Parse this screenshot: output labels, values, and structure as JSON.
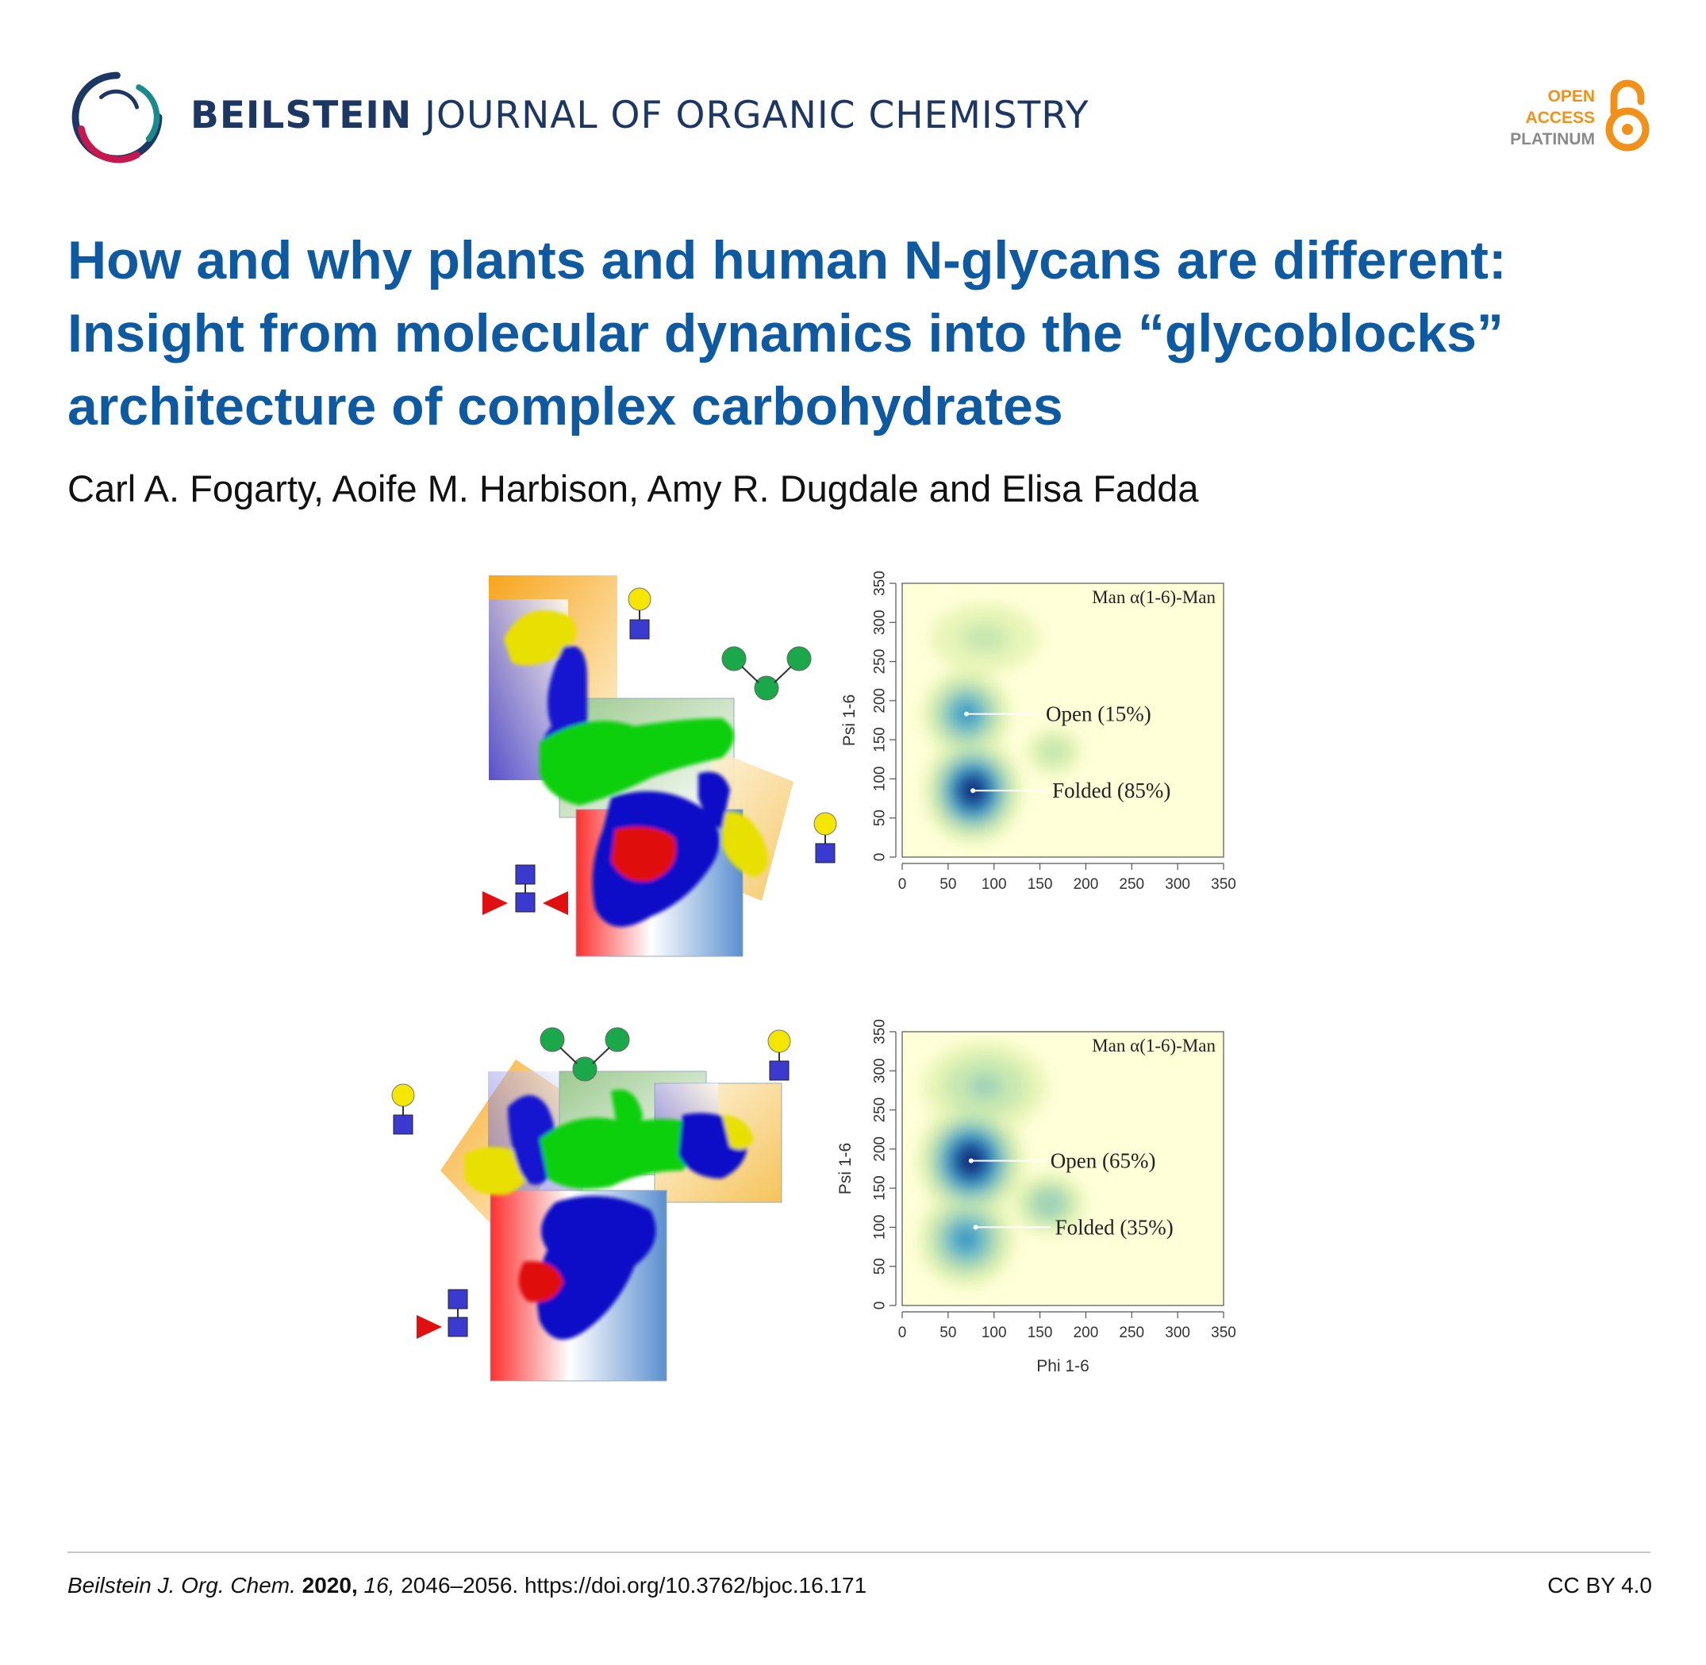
{
  "header": {
    "journal_bold": "BEILSTEIN",
    "journal_rest": " JOURNAL OF ORGANIC CHEMISTRY",
    "oa_line1": "OPEN",
    "oa_line2": "ACCESS",
    "oa_line3": "PLATINUM",
    "colors": {
      "journal": "#1d3764",
      "oa_orange": "#f29119",
      "oa_gray": "#8a8a8a"
    }
  },
  "article": {
    "title_lines": [
      "How and why plants and human N-glycans are different:",
      "Insight from molecular dynamics into the “glycoblocks”",
      "architecture of complex carbohydrates"
    ],
    "authors": "Carl A. Fogarty, Aoife M. Harbison, Amy R. Dugdale and Elisa Fadda",
    "title_color": "#0d5aa3"
  },
  "chart_data": [
    {
      "type": "heatmap",
      "title": "Man α(1-6)-Man",
      "xlabel": "",
      "ylabel": "Psi 1-6",
      "xlim": [
        0,
        350
      ],
      "ylim": [
        0,
        350
      ],
      "xticks": [
        0,
        50,
        100,
        150,
        200,
        250,
        300,
        350
      ],
      "yticks": [
        0,
        50,
        100,
        150,
        200,
        250,
        300,
        350
      ],
      "annotations": [
        {
          "text": "Open (15%)",
          "x": 70,
          "y": 183
        },
        {
          "text": "Folded (85%)",
          "x": 77,
          "y": 85
        }
      ],
      "peaks": [
        {
          "x": 77,
          "y": 85,
          "intensity": 1.0,
          "spread": [
            22,
            28
          ]
        },
        {
          "x": 70,
          "y": 183,
          "intensity": 0.55,
          "spread": [
            22,
            26
          ]
        },
        {
          "x": 165,
          "y": 135,
          "intensity": 0.2,
          "spread": [
            18,
            18
          ]
        },
        {
          "x": 90,
          "y": 280,
          "intensity": 0.15,
          "spread": [
            40,
            30
          ]
        }
      ]
    },
    {
      "type": "heatmap",
      "title": "Man α(1-6)-Man",
      "xlabel": "Phi 1-6",
      "ylabel": "Psi 1-6",
      "xlim": [
        0,
        350
      ],
      "ylim": [
        0,
        350
      ],
      "xticks": [
        0,
        50,
        100,
        150,
        200,
        250,
        300,
        350
      ],
      "yticks": [
        0,
        50,
        100,
        150,
        200,
        250,
        300,
        350
      ],
      "annotations": [
        {
          "text": "Open (65%)",
          "x": 75,
          "y": 185
        },
        {
          "text": "Folded (35%)",
          "x": 80,
          "y": 100
        }
      ],
      "peaks": [
        {
          "x": 75,
          "y": 185,
          "intensity": 1.0,
          "spread": [
            24,
            30
          ]
        },
        {
          "x": 70,
          "y": 85,
          "intensity": 0.55,
          "spread": [
            24,
            28
          ]
        },
        {
          "x": 160,
          "y": 130,
          "intensity": 0.35,
          "spread": [
            20,
            20
          ]
        },
        {
          "x": 90,
          "y": 280,
          "intensity": 0.25,
          "spread": [
            38,
            32
          ]
        }
      ]
    }
  ],
  "footer": {
    "journal_abbrev": "Beilstein J. Org. Chem.",
    "year": "2020,",
    "volume": "16,",
    "pages_doi": "2046–2056. https://doi.org/10.3762/bjoc.16.171",
    "license": "CC BY 4.0"
  }
}
